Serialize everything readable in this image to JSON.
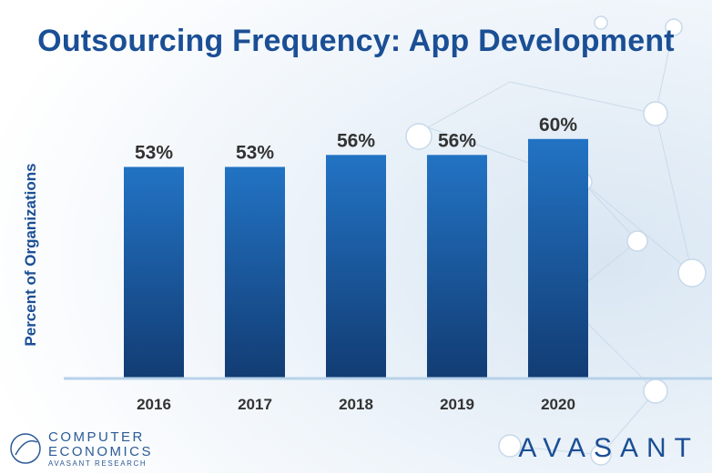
{
  "title": "Outsourcing Frequency: App Development",
  "colors": {
    "title": "#1b4f95",
    "bar_top": "#2273c4",
    "bar_bottom": "#123c73",
    "label": "#333333",
    "baseline": "#b7d2ea"
  },
  "chart_data": {
    "type": "bar",
    "title": "Outsourcing Frequency: App Development",
    "xlabel": "",
    "ylabel": "Percent of Organizations",
    "categories": [
      "2016",
      "2017",
      "2018",
      "2019",
      "2020"
    ],
    "values": [
      53,
      53,
      56,
      56,
      60
    ],
    "data_labels": [
      "53%",
      "53%",
      "56%",
      "56%",
      "60%"
    ],
    "ylim": [
      0,
      80
    ],
    "grid": false
  },
  "logos": {
    "left_line1": "COMPUTER",
    "left_line2": "ECONOMICS",
    "left_line3": "AVASANT RESEARCH",
    "right": "AVASANT"
  }
}
